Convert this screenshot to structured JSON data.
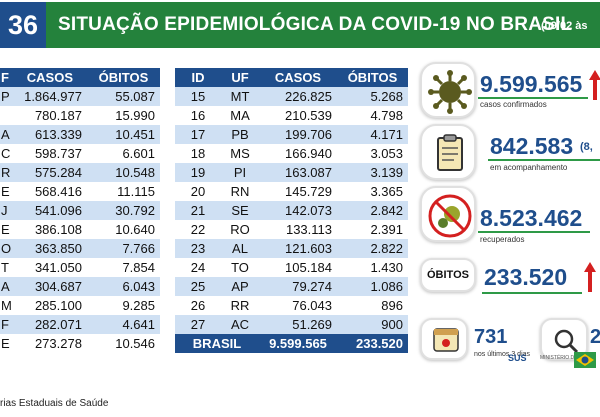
{
  "header": {
    "day_number": "36",
    "title": "SITUAÇÃO EPIDEMIOLÓGICA DA COVID-19 NO BRASIL",
    "date": "(09/02 às"
  },
  "left_table": {
    "headers": [
      "F",
      "CASOS",
      "ÓBITOS"
    ],
    "rows": [
      [
        "P",
        "1.864.977",
        "55.087"
      ],
      [
        "",
        "780.187",
        "15.990"
      ],
      [
        "A",
        "613.339",
        "10.451"
      ],
      [
        "C",
        "598.737",
        "6.601"
      ],
      [
        "R",
        "575.284",
        "10.548"
      ],
      [
        "E",
        "568.416",
        "11.115"
      ],
      [
        "J",
        "541.096",
        "30.792"
      ],
      [
        "E",
        "386.108",
        "10.640"
      ],
      [
        "O",
        "363.850",
        "7.766"
      ],
      [
        "T",
        "341.050",
        "7.854"
      ],
      [
        "A",
        "304.687",
        "6.043"
      ],
      [
        "M",
        "285.100",
        "9.285"
      ],
      [
        "F",
        "282.071",
        "4.641"
      ],
      [
        "E",
        "273.278",
        "10.546"
      ]
    ]
  },
  "right_table": {
    "headers": [
      "ID",
      "UF",
      "CASOS",
      "ÓBITOS"
    ],
    "rows": [
      [
        "15",
        "MT",
        "226.825",
        "5.268"
      ],
      [
        "16",
        "MA",
        "210.539",
        "4.798"
      ],
      [
        "17",
        "PB",
        "199.706",
        "4.171"
      ],
      [
        "18",
        "MS",
        "166.940",
        "3.053"
      ],
      [
        "19",
        "PI",
        "163.087",
        "3.139"
      ],
      [
        "20",
        "RN",
        "145.729",
        "3.365"
      ],
      [
        "21",
        "SE",
        "142.073",
        "2.842"
      ],
      [
        "22",
        "RO",
        "133.113",
        "2.391"
      ],
      [
        "23",
        "AL",
        "121.603",
        "2.822"
      ],
      [
        "24",
        "TO",
        "105.184",
        "1.430"
      ],
      [
        "25",
        "AP",
        "79.274",
        "1.086"
      ],
      [
        "26",
        "RR",
        "76.043",
        "896"
      ],
      [
        "27",
        "AC",
        "51.269",
        "900"
      ]
    ],
    "total": {
      "label": "BRASIL",
      "cases": "9.599.565",
      "deaths": "233.520"
    }
  },
  "panels": {
    "confirmed": {
      "value": "9.599.565",
      "caption": "casos confirmados",
      "icon": "virus-icon"
    },
    "monitoring": {
      "value": "842.583",
      "extra": "(8,",
      "caption": "em acompanhamento",
      "icon": "clipboard-icon"
    },
    "recovered": {
      "value": "8.523.462",
      "caption": "recuperados",
      "icon": "no-virus-icon"
    },
    "deaths": {
      "label": "ÓBITOS",
      "value": "233.520"
    },
    "recent": {
      "value": "731",
      "caption": "nos últimos 3 dias",
      "second_value": "2",
      "icon": "calendar-icon",
      "search_icon": "magnifier-icon"
    }
  },
  "footer": {
    "source": "rias Estaduais de Saúde",
    "sus_logo": "SUS",
    "ministry_logo": "MINISTÉRIO DA SAÚDE"
  },
  "colors": {
    "primary_blue": "#1f4e8c",
    "banner_green": "#24823c",
    "row_alt": "#cfe0f3",
    "arrow_red": "#d42020"
  }
}
